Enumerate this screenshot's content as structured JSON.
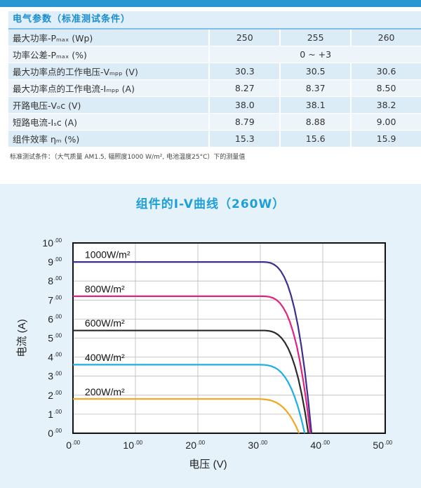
{
  "params": {
    "section_title": "电气参数（标准测试条件）",
    "rows": [
      {
        "label": "最大功率-Pₘₐₓ (Wp)",
        "values": [
          "250",
          "255",
          "260"
        ]
      },
      {
        "label": "功率公差-Pₘₐₓ (%)",
        "merged": "0 ~ +3"
      },
      {
        "label": "最大功率点的工作电压-Vₘₚₚ (V)",
        "values": [
          "30.3",
          "30.5",
          "30.6"
        ]
      },
      {
        "label": "最大功率点的工作电流-Iₘₚₚ (A)",
        "values": [
          "8.27",
          "8.37",
          "8.50"
        ]
      },
      {
        "label": "开路电压-Vₒc (V)",
        "values": [
          "38.0",
          "38.1",
          "38.2"
        ]
      },
      {
        "label": "短路电流-Iₛc (A)",
        "values": [
          "8.79",
          "8.88",
          "9.00"
        ]
      },
      {
        "label": "组件效率 ηₘ (%)",
        "values": [
          "15.3",
          "15.6",
          "15.9"
        ]
      }
    ],
    "note": "标准测试条件：（大气质量 AM1.5, 辐照度1000 W/m², 电池温度25°C）下的测量值"
  },
  "chart_data": {
    "type": "line",
    "title": "组件的I-V曲线（260W）",
    "xlabel": "电压 (V)",
    "ylabel": "电流 (A)",
    "xlim": [
      0,
      50
    ],
    "ylim": [
      0,
      10
    ],
    "x_ticks": [
      0,
      10,
      20,
      30,
      40,
      50
    ],
    "y_ticks": [
      0,
      1,
      2,
      3,
      4,
      5,
      6,
      7,
      8,
      9,
      10
    ],
    "tick_suffix": ".00",
    "grid": true,
    "series": [
      {
        "name": "1000W/m²",
        "color": "#3c2f8f",
        "isc": 9.0,
        "voc": 38.2,
        "knee_v": 30.0,
        "label_v": 1.9,
        "label_y": 9.2
      },
      {
        "name": "800W/m²",
        "color": "#e0237e",
        "isc": 7.2,
        "voc": 38.0,
        "knee_v": 30.0,
        "label_v": 1.9,
        "label_y": 7.4
      },
      {
        "name": "600W/m²",
        "color": "#2b2b2b",
        "isc": 5.4,
        "voc": 37.7,
        "knee_v": 30.0,
        "label_v": 1.9,
        "label_y": 5.6
      },
      {
        "name": "400W/m²",
        "color": "#1eaee2",
        "isc": 3.6,
        "voc": 37.1,
        "knee_v": 29.5,
        "label_v": 1.9,
        "label_y": 3.8
      },
      {
        "name": "200W/m²",
        "color": "#f4a623",
        "isc": 1.8,
        "voc": 36.2,
        "knee_v": 29.0,
        "label_v": 1.9,
        "label_y": 2.0
      }
    ]
  }
}
